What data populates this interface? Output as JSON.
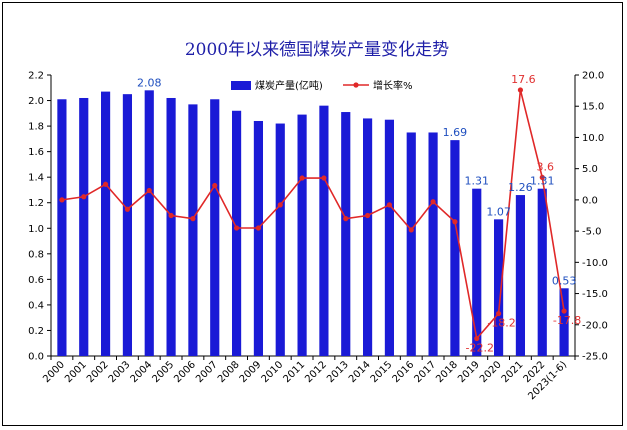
{
  "chart_data": {
    "type": "bar+line",
    "title": "2000年以来德国煤炭产量变化走势",
    "categories": [
      "2000",
      "2001",
      "2002",
      "2003",
      "2004",
      "2005",
      "2006",
      "2007",
      "2008",
      "2009",
      "2010",
      "2011",
      "2012",
      "2013",
      "2014",
      "2015",
      "2016",
      "2017",
      "2018",
      "2019",
      "2020",
      "2021",
      "2022",
      "2023(1-6)"
    ],
    "series": [
      {
        "name": "煤炭产量(亿吨)",
        "type": "bar",
        "axis": "left",
        "color": "#1a1ad6",
        "values": [
          2.01,
          2.02,
          2.07,
          2.05,
          2.08,
          2.02,
          1.97,
          2.01,
          1.92,
          1.84,
          1.82,
          1.89,
          1.96,
          1.91,
          1.86,
          1.85,
          1.75,
          1.75,
          1.69,
          1.31,
          1.07,
          1.26,
          1.31,
          0.53
        ]
      },
      {
        "name": "增长率%",
        "type": "line",
        "axis": "right",
        "color": "#e02828",
        "values": [
          0.0,
          0.5,
          2.5,
          -1.5,
          1.5,
          -2.5,
          -3.0,
          2.3,
          -4.5,
          -4.5,
          -0.8,
          3.5,
          3.5,
          -3.0,
          -2.5,
          -0.8,
          -4.8,
          -0.3,
          -3.5,
          -22.2,
          -18.2,
          17.6,
          3.6,
          -17.8
        ]
      }
    ],
    "data_labels": {
      "bar": [
        {
          "index": 4,
          "text": "2.08"
        },
        {
          "index": 18,
          "text": "1.69"
        },
        {
          "index": 19,
          "text": "1.31"
        },
        {
          "index": 20,
          "text": "1.07"
        },
        {
          "index": 21,
          "text": "1.26"
        },
        {
          "index": 22,
          "text": "1.31"
        },
        {
          "index": 23,
          "text": "0.53"
        }
      ],
      "line": [
        {
          "index": 19,
          "text": "-22.2"
        },
        {
          "index": 20,
          "text": "-18.2"
        },
        {
          "index": 21,
          "text": "17.6"
        },
        {
          "index": 22,
          "text": "3.6"
        },
        {
          "index": 23,
          "text": "-17.8"
        }
      ]
    },
    "ylim_left": [
      0.0,
      2.2
    ],
    "ylim_right": [
      -25.0,
      20.0
    ],
    "yticks_left": [
      "0.0",
      "0.2",
      "0.4",
      "0.6",
      "0.8",
      "1.0",
      "1.2",
      "1.4",
      "1.6",
      "1.8",
      "2.0",
      "2.2"
    ],
    "yticks_right": [
      "-25.0",
      "-20.0",
      "-15.0",
      "-10.0",
      "-5.0",
      "0.0",
      "5.0",
      "10.0",
      "15.0",
      "20.0"
    ],
    "grid": false,
    "legend_placement": "top-center"
  }
}
